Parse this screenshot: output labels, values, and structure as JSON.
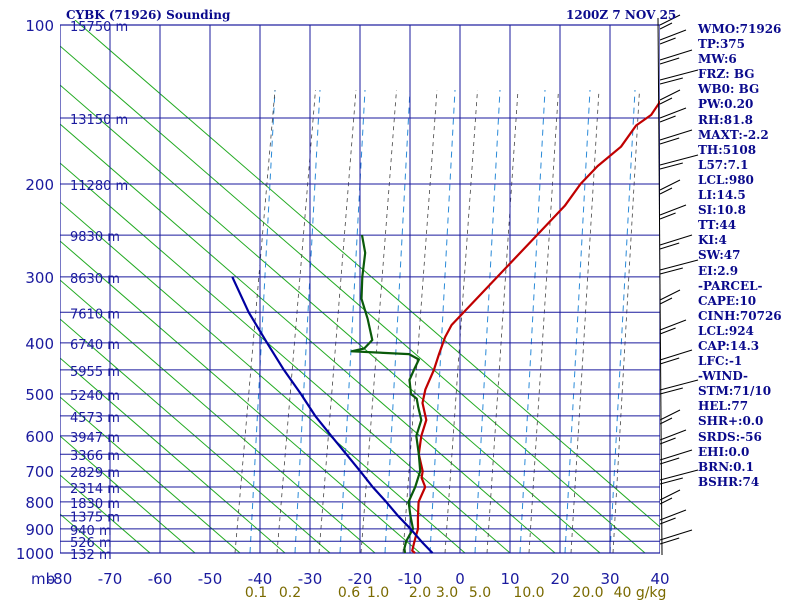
{
  "header": {
    "station": "CYBK (71926) Sounding",
    "time": "1200Z  7 NOV 25"
  },
  "indices": [
    "WMO:71926",
    "TP:375",
    "MW:6",
    "FRZ: BG",
    "WB0: BG",
    "PW:0.20",
    "RH:81.8",
    "MAXT:-2.2",
    "TH:5108",
    "L57:7.1",
    "LCL:980",
    "LI:14.5",
    "SI:10.8",
    "TT:44",
    "KI:4",
    "SW:47",
    "EI:2.9",
    "-PARCEL-",
    "CAPE:10",
    "CINH:70726",
    "LCL:924",
    "CAP:14.3",
    "LFC:-1",
    "-WIND-",
    "STM:71/10",
    "HEL:77",
    "SHR+:0.0",
    "SRDS:-56",
    "EHI:0.0",
    "BRN:0.1",
    "BSHR:74"
  ],
  "colors": {
    "grid": "#1a1a9e",
    "label": "#0a0a8c",
    "temperature": "#c00000",
    "dewpoint": "#0a5a0a",
    "parcel": "#0000a0",
    "dry_adiabat": "#22aa22",
    "moist_adiabat": "#2a8ad8",
    "mixing_ratio": "#444444",
    "mixing_label": "#7a6a00"
  },
  "chart_data": {
    "type": "line",
    "title": "CYBK (71926) Sounding",
    "xlabel": "",
    "ylabel": "mb",
    "xlim": [
      -80,
      40
    ],
    "ylim": [
      1000,
      100
    ],
    "y_scale": "log",
    "grid": true,
    "x_ticks": [
      -80,
      -70,
      -60,
      -50,
      -40,
      -30,
      -20,
      -10,
      0,
      10,
      20,
      30,
      40
    ],
    "pressure_levels": [
      100,
      150,
      200,
      250,
      300,
      350,
      400,
      450,
      500,
      550,
      600,
      650,
      700,
      750,
      800,
      850,
      900,
      950,
      1000
    ],
    "pressure_labels": [
      100,
      200,
      300,
      400,
      500,
      600,
      700,
      800,
      900,
      1000
    ],
    "height_labels": [
      {
        "p": 100,
        "h": "15750 m"
      },
      {
        "p": 150,
        "h": "13150 m"
      },
      {
        "p": 200,
        "h": "11280 m"
      },
      {
        "p": 250,
        "h": "9830 m"
      },
      {
        "p": 300,
        "h": "8630 m"
      },
      {
        "p": 350,
        "h": "7610 m"
      },
      {
        "p": 400,
        "h": "6740 m"
      },
      {
        "p": 450,
        "h": "5955 m"
      },
      {
        "p": 500,
        "h": "5240 m"
      },
      {
        "p": 550,
        "h": "4573 m"
      },
      {
        "p": 600,
        "h": "3947 m"
      },
      {
        "p": 650,
        "h": "3366 m"
      },
      {
        "p": 700,
        "h": "2829 m"
      },
      {
        "p": 750,
        "h": "2314 m"
      },
      {
        "p": 800,
        "h": "1830 m"
      },
      {
        "p": 850,
        "h": "1375 m"
      },
      {
        "p": 900,
        "h": "940 m"
      },
      {
        "p": 950,
        "h": "526 m"
      },
      {
        "p": 1000,
        "h": "132 m"
      }
    ],
    "mixing_ratio_labels": [
      "0.1",
      "0.2",
      "0.6",
      "1.0",
      "2.0",
      "3.0",
      "5.0",
      "10.0",
      "20.0",
      "40 g/kg"
    ],
    "series": [
      {
        "key": "temperature",
        "points": [
          [
            1000,
            -9
          ],
          [
            990,
            -10
          ],
          [
            960,
            -11
          ],
          [
            930,
            -12
          ],
          [
            900,
            -13
          ],
          [
            860,
            -15
          ],
          [
            800,
            -18
          ],
          [
            750,
            -19.5
          ],
          [
            720,
            -22
          ],
          [
            700,
            -23
          ],
          [
            650,
            -27
          ],
          [
            600,
            -30
          ],
          [
            560,
            -32
          ],
          [
            520,
            -36
          ],
          [
            490,
            -38
          ],
          [
            450,
            -40
          ],
          [
            420,
            -42
          ],
          [
            390,
            -44
          ],
          [
            370,
            -45
          ],
          [
            320,
            -45
          ],
          [
            250,
            -45
          ],
          [
            220,
            -45
          ],
          [
            200,
            -46
          ],
          [
            185,
            -46
          ],
          [
            170,
            -45
          ],
          [
            155,
            -46
          ],
          [
            148,
            -45
          ],
          [
            100,
            -50
          ]
        ]
      },
      {
        "key": "dewpoint",
        "points": [
          [
            1000,
            -11
          ],
          [
            980,
            -12
          ],
          [
            950,
            -13
          ],
          [
            900,
            -14
          ],
          [
            850,
            -17
          ],
          [
            800,
            -20
          ],
          [
            750,
            -21.5
          ],
          [
            700,
            -23.5
          ],
          [
            650,
            -27
          ],
          [
            600,
            -31
          ],
          [
            560,
            -33
          ],
          [
            530,
            -36
          ],
          [
            510,
            -38
          ],
          [
            500,
            -40
          ],
          [
            470,
            -43
          ],
          [
            450,
            -44
          ],
          [
            430,
            -45
          ],
          [
            420,
            -48
          ],
          [
            415,
            -60
          ],
          [
            410,
            -58
          ],
          [
            395,
            -58
          ],
          [
            360,
            -63
          ],
          [
            330,
            -68
          ],
          [
            300,
            -72
          ],
          [
            270,
            -76
          ],
          [
            250,
            -80
          ]
        ]
      },
      {
        "key": "parcel",
        "points": [
          [
            1000,
            -5.5
          ],
          [
            950,
            -10
          ],
          [
            900,
            -14.5
          ],
          [
            850,
            -19.5
          ],
          [
            800,
            -24.5
          ],
          [
            750,
            -30
          ],
          [
            700,
            -35.5
          ],
          [
            650,
            -41.5
          ],
          [
            600,
            -48
          ],
          [
            550,
            -55
          ],
          [
            500,
            -62
          ],
          [
            450,
            -70
          ],
          [
            400,
            -78.5
          ],
          [
            350,
            -88
          ],
          [
            300,
            -98
          ]
        ]
      }
    ]
  }
}
